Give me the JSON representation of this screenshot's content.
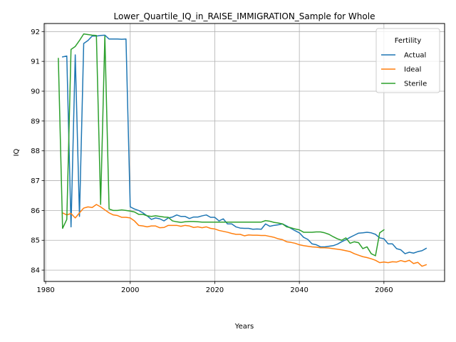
{
  "chart_data": {
    "type": "line",
    "title": "Lower_Quartile_IQ_in_RAISE_IMMIGRATION_Sample for Whole",
    "xlabel": "Years",
    "ylabel": "IQ",
    "xlim": [
      1979.65,
      2074.35
    ],
    "ylim": [
      83.62,
      92.27
    ],
    "xticks": [
      1980,
      2000,
      2020,
      2040,
      2060
    ],
    "yticks": [
      84,
      85,
      86,
      87,
      88,
      89,
      90,
      91,
      92
    ],
    "grid": true,
    "legend": {
      "title": "Fertility",
      "placement": "top-right"
    },
    "series": [
      {
        "name": "Actual",
        "color": "#1f77b4",
        "x": [
          1984,
          1985,
          1986,
          1987,
          1988,
          1989,
          1990,
          1991,
          1992,
          1993,
          1994,
          1995,
          1996,
          1997,
          1998,
          1999,
          2000,
          2001,
          2002,
          2003,
          2004,
          2005,
          2006,
          2007,
          2008,
          2009,
          2010,
          2011,
          2012,
          2013,
          2014,
          2015,
          2016,
          2017,
          2018,
          2019,
          2020,
          2021,
          2022,
          2023,
          2024,
          2025,
          2026,
          2027,
          2028,
          2029,
          2030,
          2031,
          2032,
          2033,
          2034,
          2035,
          2036,
          2037,
          2038,
          2039,
          2040,
          2041,
          2042,
          2043,
          2044,
          2045,
          2046,
          2047,
          2048,
          2049,
          2050,
          2051,
          2052,
          2053,
          2054,
          2055,
          2056,
          2057,
          2058,
          2059,
          2060,
          2061,
          2062,
          2063,
          2064,
          2065,
          2066,
          2067,
          2068,
          2069,
          2070
        ],
        "values": [
          91.15,
          91.18,
          85.45,
          91.22,
          85.8,
          91.6,
          91.7,
          91.85,
          91.85,
          91.87,
          91.88,
          91.75,
          91.75,
          91.75,
          91.74,
          91.75,
          86.12,
          86.05,
          86.0,
          85.92,
          85.82,
          85.7,
          85.75,
          85.72,
          85.65,
          85.75,
          85.78,
          85.85,
          85.8,
          85.8,
          85.73,
          85.78,
          85.78,
          85.82,
          85.85,
          85.77,
          85.77,
          85.65,
          85.72,
          85.55,
          85.55,
          85.45,
          85.41,
          85.4,
          85.4,
          85.37,
          85.38,
          85.37,
          85.55,
          85.47,
          85.5,
          85.52,
          85.55,
          85.48,
          85.4,
          85.32,
          85.25,
          85.1,
          85.03,
          84.88,
          84.85,
          84.78,
          84.78,
          84.8,
          84.82,
          84.87,
          84.95,
          85.02,
          85.1,
          85.17,
          85.24,
          85.25,
          85.27,
          85.25,
          85.2,
          85.08,
          85.05,
          84.88,
          84.88,
          84.72,
          84.68,
          84.55,
          84.6,
          84.57,
          84.62,
          84.65,
          84.73
        ]
      },
      {
        "name": "Ideal",
        "color": "#ff7f0e",
        "x": [
          1984,
          1985,
          1986,
          1987,
          1988,
          1989,
          1990,
          1991,
          1992,
          1993,
          1994,
          1995,
          1996,
          1997,
          1998,
          1999,
          2000,
          2001,
          2002,
          2003,
          2004,
          2005,
          2006,
          2007,
          2008,
          2009,
          2010,
          2011,
          2012,
          2013,
          2014,
          2015,
          2016,
          2017,
          2018,
          2019,
          2020,
          2021,
          2022,
          2023,
          2024,
          2025,
          2026,
          2027,
          2028,
          2029,
          2030,
          2031,
          2032,
          2033,
          2034,
          2035,
          2036,
          2037,
          2038,
          2039,
          2040,
          2041,
          2042,
          2043,
          2044,
          2045,
          2046,
          2047,
          2048,
          2049,
          2050,
          2051,
          2052,
          2053,
          2054,
          2055,
          2056,
          2057,
          2058,
          2059,
          2060,
          2061,
          2062,
          2063,
          2064,
          2065,
          2066,
          2067,
          2068,
          2069,
          2070
        ],
        "values": [
          85.92,
          85.85,
          85.9,
          85.75,
          85.92,
          86.08,
          86.12,
          86.1,
          86.2,
          86.12,
          86.02,
          85.92,
          85.85,
          85.83,
          85.77,
          85.77,
          85.75,
          85.65,
          85.5,
          85.48,
          85.45,
          85.48,
          85.48,
          85.42,
          85.43,
          85.5,
          85.5,
          85.5,
          85.47,
          85.5,
          85.48,
          85.43,
          85.45,
          85.42,
          85.45,
          85.4,
          85.38,
          85.33,
          85.3,
          85.27,
          85.23,
          85.2,
          85.2,
          85.15,
          85.18,
          85.17,
          85.17,
          85.16,
          85.16,
          85.13,
          85.1,
          85.05,
          85.02,
          84.95,
          84.93,
          84.9,
          84.85,
          84.82,
          84.8,
          84.78,
          84.77,
          84.75,
          84.75,
          84.74,
          84.72,
          84.7,
          84.68,
          84.65,
          84.62,
          84.55,
          84.5,
          84.45,
          84.42,
          84.38,
          84.33,
          84.25,
          84.27,
          84.25,
          84.28,
          84.27,
          84.32,
          84.28,
          84.33,
          84.22,
          84.26,
          84.13,
          84.18
        ]
      },
      {
        "name": "Sterile",
        "color": "#2ca02c",
        "x": [
          1983,
          1984,
          1985,
          1986,
          1987,
          1988,
          1989,
          1990,
          1991,
          1992,
          1993,
          1994,
          1995,
          1996,
          1997,
          1998,
          1999,
          2000,
          2001,
          2002,
          2003,
          2004,
          2005,
          2006,
          2007,
          2008,
          2009,
          2010,
          2011,
          2012,
          2013,
          2014,
          2015,
          2016,
          2017,
          2018,
          2019,
          2020,
          2021,
          2022,
          2023,
          2024,
          2025,
          2026,
          2027,
          2028,
          2029,
          2030,
          2031,
          2032,
          2033,
          2034,
          2035,
          2036,
          2037,
          2038,
          2039,
          2040,
          2041,
          2042,
          2043,
          2044,
          2045,
          2046,
          2047,
          2048,
          2049,
          2050,
          2051,
          2052,
          2053,
          2054,
          2055,
          2056,
          2057,
          2058,
          2059,
          2060
        ],
        "values": [
          91.1,
          85.4,
          85.7,
          91.4,
          91.5,
          91.7,
          91.92,
          91.9,
          91.88,
          91.87,
          86.2,
          91.85,
          86.05,
          86.0,
          86.0,
          86.02,
          86.0,
          85.98,
          85.95,
          85.87,
          85.87,
          85.82,
          85.8,
          85.82,
          85.8,
          85.78,
          85.77,
          85.65,
          85.62,
          85.6,
          85.62,
          85.63,
          85.63,
          85.62,
          85.61,
          85.61,
          85.61,
          85.61,
          85.61,
          85.61,
          85.61,
          85.61,
          85.61,
          85.61,
          85.61,
          85.61,
          85.61,
          85.61,
          85.61,
          85.66,
          85.64,
          85.6,
          85.58,
          85.55,
          85.45,
          85.42,
          85.38,
          85.35,
          85.27,
          85.27,
          85.27,
          85.28,
          85.28,
          85.25,
          85.2,
          85.12,
          85.05,
          85.0,
          85.08,
          84.9,
          84.95,
          84.92,
          84.72,
          84.78,
          84.55,
          84.48,
          85.25,
          85.35
        ]
      }
    ]
  }
}
